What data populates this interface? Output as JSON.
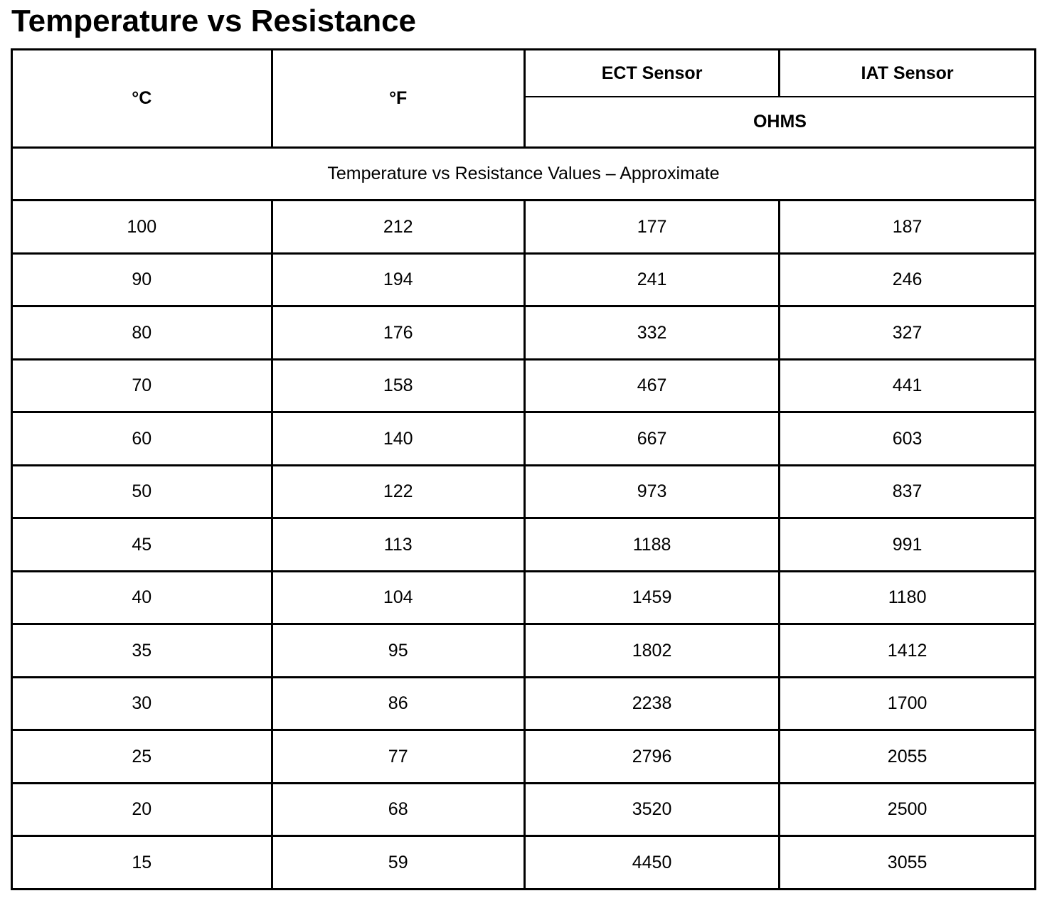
{
  "page_title": "Temperature vs Resistance",
  "table": {
    "header": {
      "celsius": "°C",
      "fahrenheit": "°F",
      "ect_sensor": "ECT Sensor",
      "iat_sensor": "IAT Sensor",
      "ohms": "OHMS"
    },
    "caption": "Temperature vs Resistance Values – Approximate",
    "columns": [
      "°C",
      "°F",
      "ECT Sensor OHMS",
      "IAT Sensor OHMS"
    ],
    "rows": [
      [
        "100",
        "212",
        "177",
        "187"
      ],
      [
        "90",
        "194",
        "241",
        "246"
      ],
      [
        "80",
        "176",
        "332",
        "327"
      ],
      [
        "70",
        "158",
        "467",
        "441"
      ],
      [
        "60",
        "140",
        "667",
        "603"
      ],
      [
        "50",
        "122",
        "973",
        "837"
      ],
      [
        "45",
        "113",
        "1188",
        "991"
      ],
      [
        "40",
        "104",
        "1459",
        "1180"
      ],
      [
        "35",
        "95",
        "1802",
        "1412"
      ],
      [
        "30",
        "86",
        "2238",
        "1700"
      ],
      [
        "25",
        "77",
        "2796",
        "2055"
      ],
      [
        "20",
        "68",
        "3520",
        "2500"
      ],
      [
        "15",
        "59",
        "4450",
        "3055"
      ]
    ]
  }
}
